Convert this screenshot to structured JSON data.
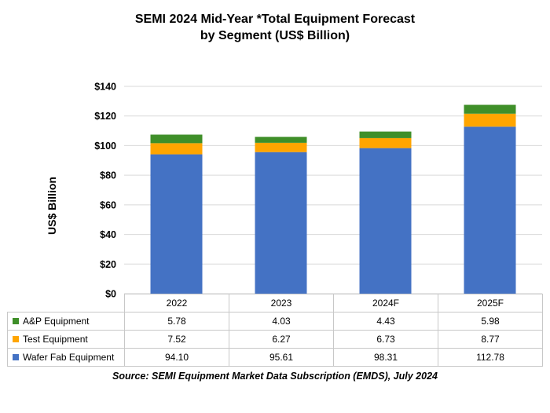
{
  "chart_data": {
    "type": "bar",
    "stacked": true,
    "title": "SEMI 2024 Mid-Year *Total Equipment Forecast",
    "subtitle": "by Segment (US$ Billion)",
    "ylabel": "US$ Billion",
    "ylim": [
      0,
      140
    ],
    "y_ticks": [
      "$0",
      "$20",
      "$40",
      "$60",
      "$80",
      "$100",
      "$120",
      "$140"
    ],
    "y_tick_values": [
      0,
      20,
      40,
      60,
      80,
      100,
      120,
      140
    ],
    "grid": true,
    "categories": [
      "2022",
      "2023",
      "2024F",
      "2025F"
    ],
    "series": [
      {
        "name": "Wafer Fab Equipment",
        "color": "#4472c4",
        "values": [
          94.1,
          95.61,
          98.31,
          112.78
        ],
        "labels": [
          "94.10",
          "95.61",
          "98.31",
          "112.78"
        ]
      },
      {
        "name": "Test Equipment",
        "color": "#ffa500",
        "values": [
          7.52,
          6.27,
          6.73,
          8.77
        ],
        "labels": [
          "7.52",
          "6.27",
          "6.73",
          "8.77"
        ]
      },
      {
        "name": "A&P Equipment",
        "color": "#3f8f29",
        "values": [
          5.78,
          4.03,
          4.43,
          5.98
        ],
        "labels": [
          "5.78",
          "4.03",
          "4.43",
          "5.98"
        ]
      }
    ],
    "source": "Source: SEMI Equipment Market Data Subscription (EMDS), July 2024"
  }
}
